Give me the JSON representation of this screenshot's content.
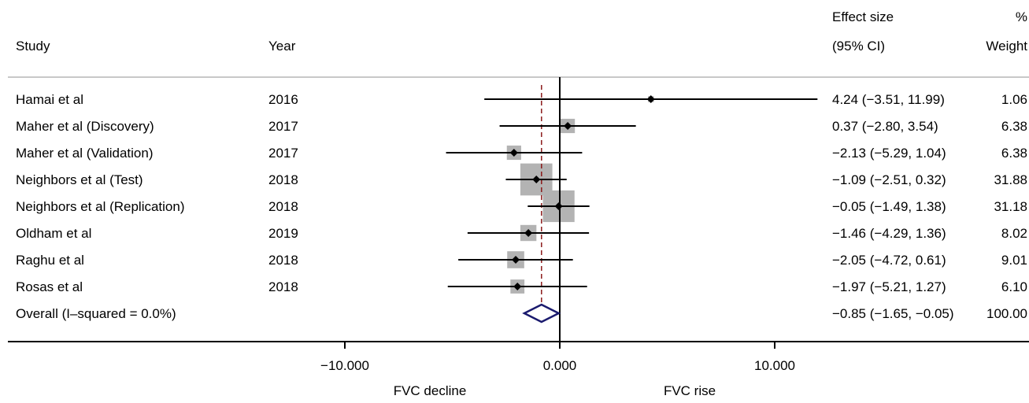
{
  "header": {
    "study": "Study",
    "year": "Year",
    "effect_line1": "Effect size",
    "effect_line2": "(95% CI)",
    "weight_line1": "%",
    "weight_line2": "Weight"
  },
  "chart_data": {
    "type": "forest",
    "x_ticks": [
      {
        "value": -10,
        "label": "−10.000"
      },
      {
        "value": 0,
        "label": "0.000"
      },
      {
        "value": 10,
        "label": "10.000"
      }
    ],
    "xlim": [
      -19.6,
      17.3
    ],
    "null_line": 0,
    "overall_line": -0.85,
    "xlabel_left": "FVC decline",
    "xlabel_right": "FVC rise",
    "studies": [
      {
        "name": "Hamai et al",
        "year": "2016",
        "est": 4.24,
        "lo": -3.51,
        "hi": 11.99,
        "weight": 1.06,
        "ci_text": "4.24 (−3.51, 11.99)",
        "weight_text": "1.06"
      },
      {
        "name": "Maher et al (Discovery)",
        "year": "2017",
        "est": 0.37,
        "lo": -2.8,
        "hi": 3.54,
        "weight": 6.38,
        "ci_text": "0.37 (−2.80, 3.54)",
        "weight_text": "6.38"
      },
      {
        "name": "Maher et al (Validation)",
        "year": "2017",
        "est": -2.13,
        "lo": -5.29,
        "hi": 1.04,
        "weight": 6.38,
        "ci_text": "−2.13 (−5.29, 1.04)",
        "weight_text": "6.38"
      },
      {
        "name": "Neighbors et al (Test)",
        "year": "2018",
        "est": -1.09,
        "lo": -2.51,
        "hi": 0.32,
        "weight": 31.88,
        "ci_text": "−1.09 (−2.51, 0.32)",
        "weight_text": "31.88"
      },
      {
        "name": "Neighbors et al (Replication)",
        "year": "2018",
        "est": -0.05,
        "lo": -1.49,
        "hi": 1.38,
        "weight": 31.18,
        "ci_text": "−0.05 (−1.49, 1.38)",
        "weight_text": "31.18"
      },
      {
        "name": "Oldham et al",
        "year": "2019",
        "est": -1.46,
        "lo": -4.29,
        "hi": 1.36,
        "weight": 8.02,
        "ci_text": "−1.46 (−4.29, 1.36)",
        "weight_text": "8.02"
      },
      {
        "name": "Raghu et al",
        "year": "2018",
        "est": -2.05,
        "lo": -4.72,
        "hi": 0.61,
        "weight": 9.01,
        "ci_text": "−2.05 (−4.72, 0.61)",
        "weight_text": "9.01"
      },
      {
        "name": "Rosas et al",
        "year": "2018",
        "est": -1.97,
        "lo": -5.21,
        "hi": 1.27,
        "weight": 6.1,
        "ci_text": "−1.97 (−5.21, 1.27)",
        "weight_text": "6.10"
      }
    ],
    "overall": {
      "name": "Overall  (I–squared = 0.0%)",
      "est": -0.85,
      "lo": -1.65,
      "hi": -0.05,
      "weight": 100.0,
      "ci_text": "−0.85 (−1.65, −0.05)",
      "weight_text": "100.00"
    }
  },
  "colors": {
    "weight_box": "#b3b3b3",
    "axis": "#000000",
    "overall_line": "#8b1a1a",
    "diamond": "#1a1a6e",
    "separator": "#c8c8c8"
  }
}
